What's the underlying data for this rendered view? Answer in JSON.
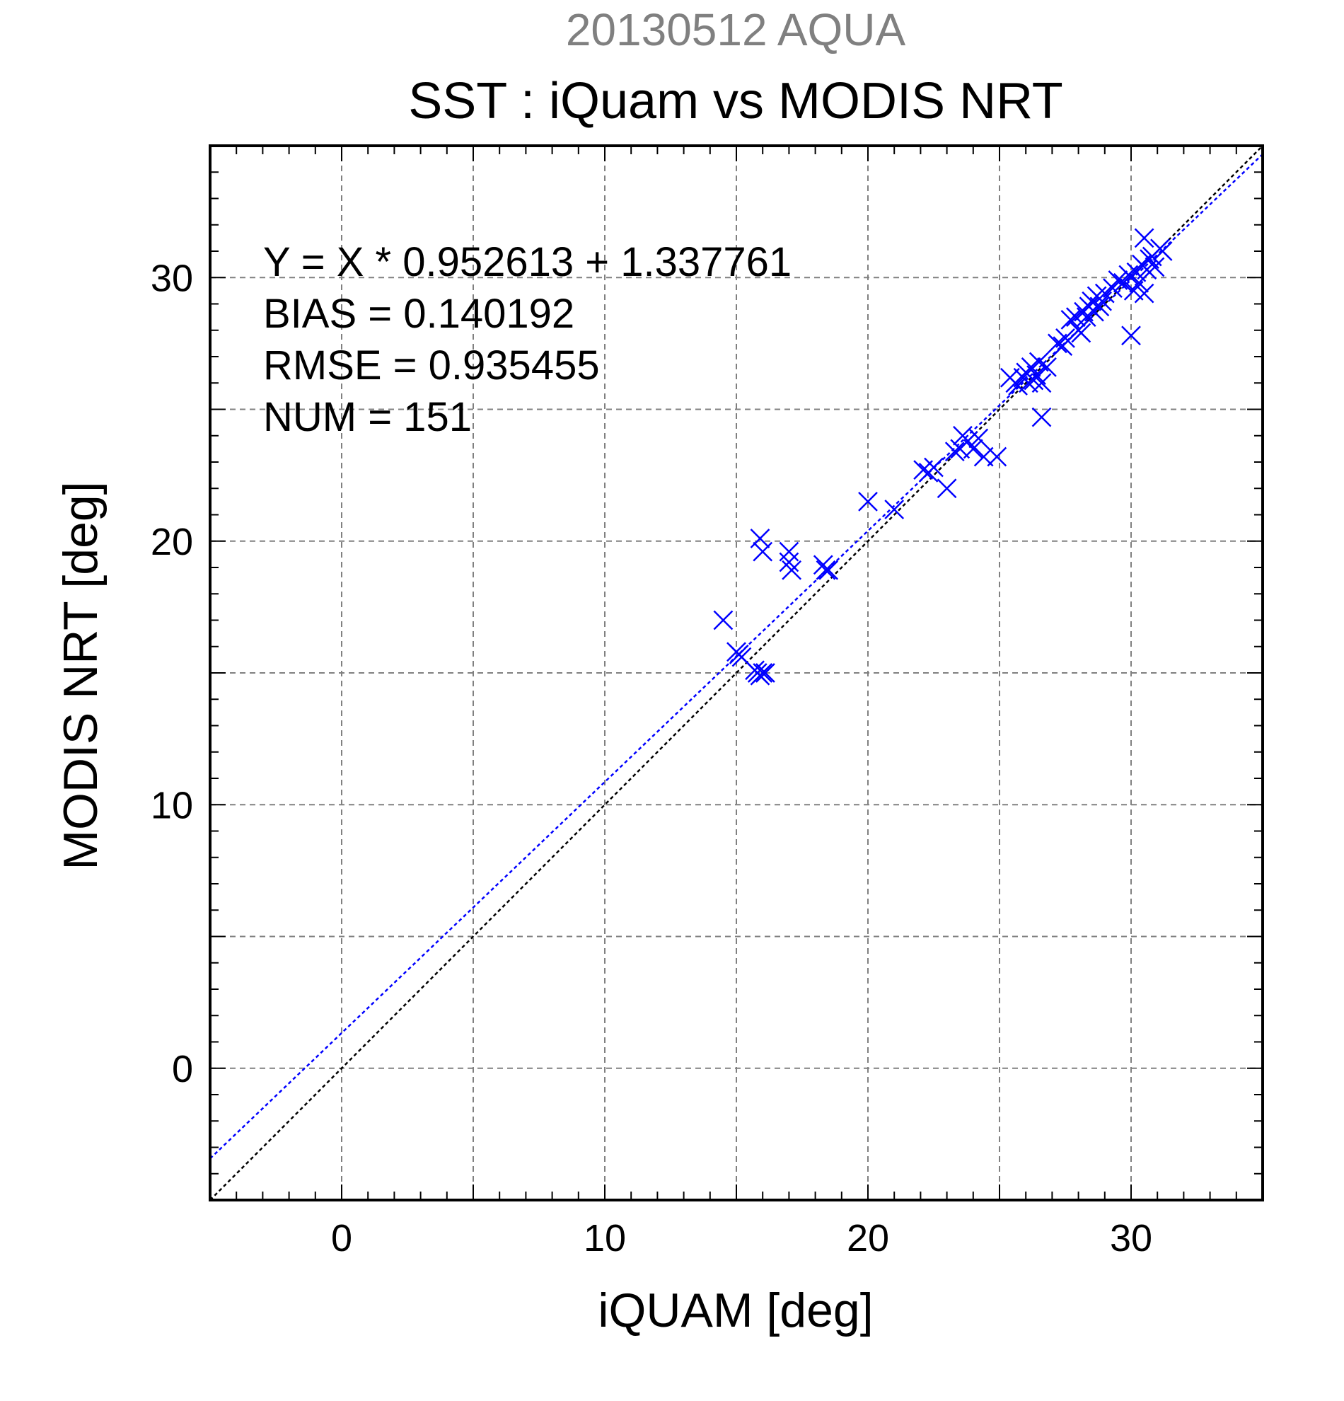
{
  "chart_data": {
    "type": "scatter",
    "suptitle": "20130512 AQUA",
    "title": "SST : iQuam vs MODIS NRT",
    "xlabel": "iQUAM [deg]",
    "ylabel": "MODIS NRT [deg]",
    "xlim": [
      -5,
      35
    ],
    "ylim": [
      -5,
      35
    ],
    "xticks": [
      0,
      10,
      20,
      30
    ],
    "yticks": [
      0,
      10,
      20,
      30
    ],
    "tick_labels": [
      "0",
      "10",
      "20",
      "30"
    ],
    "grid": true,
    "colors": {
      "points": "#0000ff",
      "fit_line": "#0000ff",
      "identity_line": "#000000",
      "suptitle": "#808080"
    },
    "stats": [
      "Y = X * 0.952613 + 1.337761",
      "BIAS = 0.140192",
      "RMSE = 0.935455",
      "NUM = 151"
    ],
    "fit": {
      "slope": 0.952613,
      "intercept": 1.337761
    },
    "series": [
      {
        "marker": "x",
        "points": [
          [
            14.5,
            17.0
          ],
          [
            15.0,
            15.8
          ],
          [
            15.1,
            15.7
          ],
          [
            15.2,
            15.6
          ],
          [
            15.7,
            15.1
          ],
          [
            15.8,
            15.0
          ],
          [
            15.9,
            14.9
          ],
          [
            16.0,
            15.0
          ],
          [
            16.1,
            15.0
          ],
          [
            15.9,
            20.1
          ],
          [
            16.0,
            19.6
          ],
          [
            17.0,
            19.6
          ],
          [
            17.0,
            19.2
          ],
          [
            17.1,
            18.9
          ],
          [
            18.3,
            19.1
          ],
          [
            18.4,
            18.9
          ],
          [
            18.5,
            18.9
          ],
          [
            20.0,
            21.5
          ],
          [
            21.0,
            21.2
          ],
          [
            22.1,
            22.7
          ],
          [
            22.3,
            22.6
          ],
          [
            22.5,
            22.8
          ],
          [
            23.0,
            22.0
          ],
          [
            23.3,
            23.4
          ],
          [
            23.5,
            23.5
          ],
          [
            23.6,
            24.0
          ],
          [
            23.8,
            23.8
          ],
          [
            24.0,
            23.5
          ],
          [
            24.2,
            23.9
          ],
          [
            24.4,
            23.2
          ],
          [
            24.9,
            23.2
          ],
          [
            25.4,
            26.2
          ],
          [
            25.6,
            26.0
          ],
          [
            25.7,
            25.9
          ],
          [
            25.9,
            26.2
          ],
          [
            26.0,
            26.4
          ],
          [
            26.1,
            26.0
          ],
          [
            26.2,
            26.6
          ],
          [
            26.3,
            26.1
          ],
          [
            26.4,
            26.3
          ],
          [
            26.5,
            26.8
          ],
          [
            26.6,
            26.0
          ],
          [
            26.6,
            24.7
          ],
          [
            26.8,
            26.6
          ],
          [
            27.2,
            27.5
          ],
          [
            27.4,
            27.4
          ],
          [
            27.5,
            27.7
          ],
          [
            27.7,
            28.4
          ],
          [
            27.9,
            28.5
          ],
          [
            28.0,
            28.0
          ],
          [
            28.1,
            27.9
          ],
          [
            28.2,
            28.7
          ],
          [
            28.3,
            28.5
          ],
          [
            28.4,
            28.9
          ],
          [
            28.5,
            29.1
          ],
          [
            28.6,
            28.7
          ],
          [
            28.7,
            29.3
          ],
          [
            28.8,
            28.9
          ],
          [
            28.9,
            29.1
          ],
          [
            29.0,
            29.4
          ],
          [
            29.3,
            29.6
          ],
          [
            29.5,
            29.9
          ],
          [
            29.7,
            29.8
          ],
          [
            29.9,
            30.1
          ],
          [
            30.0,
            27.8
          ],
          [
            30.1,
            29.5
          ],
          [
            30.2,
            30.2
          ],
          [
            30.3,
            29.8
          ],
          [
            30.4,
            30.5
          ],
          [
            30.5,
            29.4
          ],
          [
            30.5,
            31.5
          ],
          [
            30.6,
            30.3
          ],
          [
            30.7,
            30.7
          ],
          [
            30.8,
            30.8
          ],
          [
            30.9,
            30.4
          ],
          [
            31.1,
            31.1
          ],
          [
            31.2,
            31.0
          ]
        ]
      }
    ]
  }
}
